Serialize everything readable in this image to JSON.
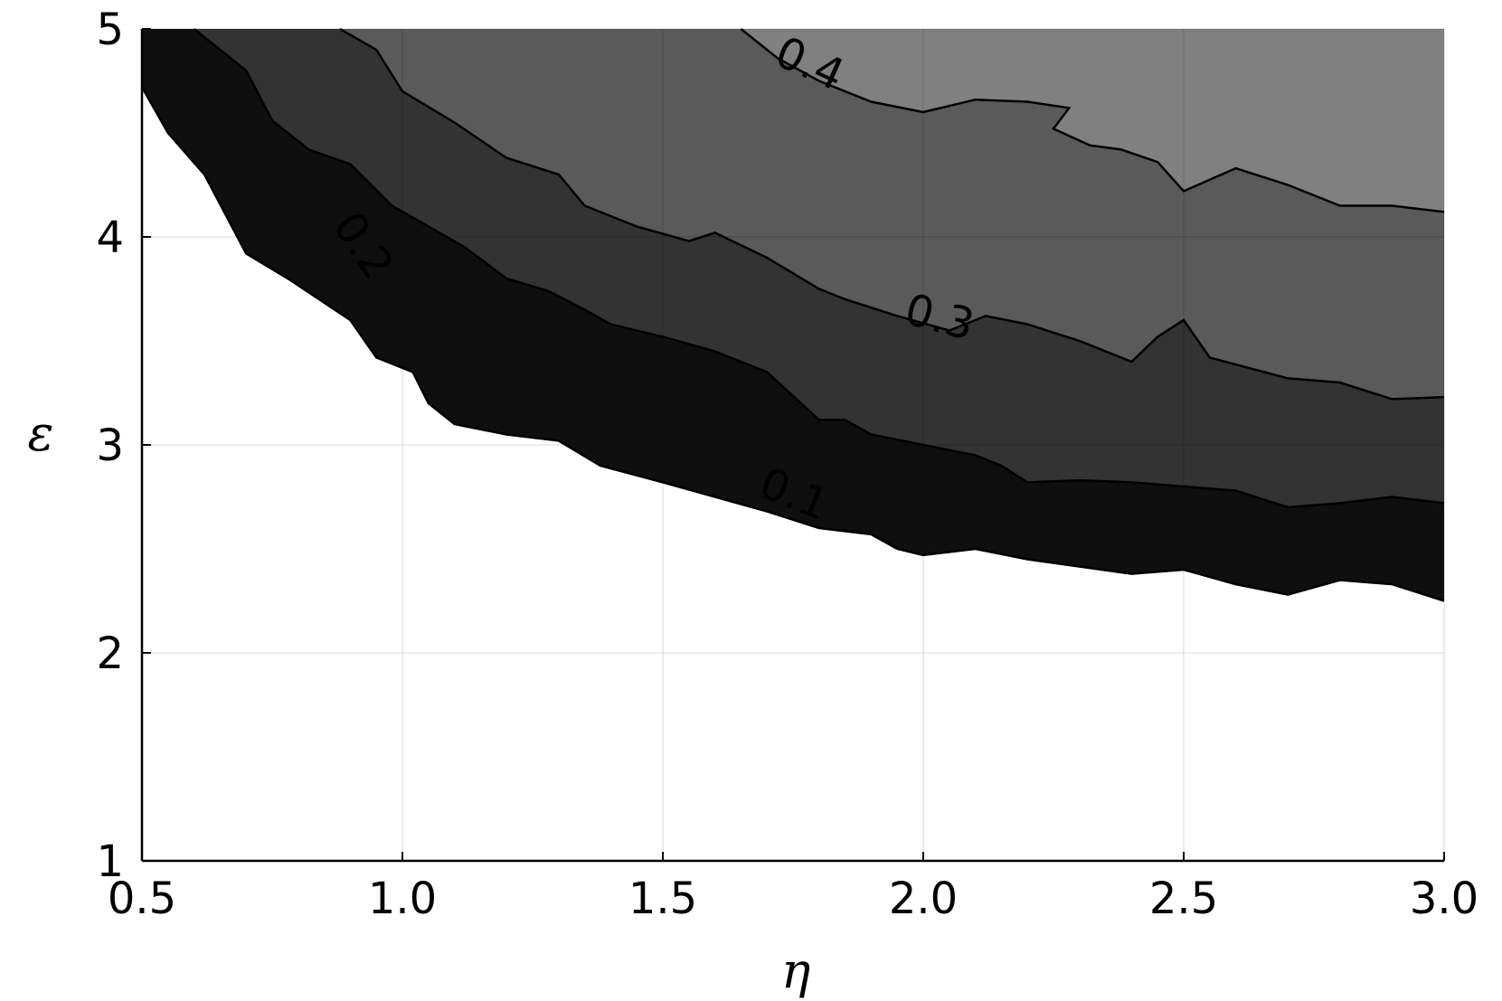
{
  "chart_data": {
    "type": "contour",
    "xlabel": "η",
    "ylabel": "ε",
    "xlim": [
      0.5,
      3.0
    ],
    "ylim": [
      1,
      5
    ],
    "x_ticks": [
      "0.5",
      "1.0",
      "1.5",
      "2.0",
      "2.5",
      "3.0"
    ],
    "y_ticks": [
      "1",
      "2",
      "3",
      "4",
      "5"
    ],
    "x_tick_values": [
      0.5,
      1.0,
      1.5,
      2.0,
      2.5,
      3.0
    ],
    "y_tick_values": [
      1,
      2,
      3,
      4,
      5
    ],
    "grid": true,
    "levels": [
      {
        "label": "0.1",
        "fill": "#0f0f0f",
        "boundary": [
          [
            0.5,
            4.72
          ],
          [
            0.55,
            4.5
          ],
          [
            0.62,
            4.3
          ],
          [
            0.7,
            3.92
          ],
          [
            0.78,
            3.8
          ],
          [
            0.9,
            3.6
          ],
          [
            0.95,
            3.42
          ],
          [
            1.02,
            3.35
          ],
          [
            1.05,
            3.2
          ],
          [
            1.1,
            3.1
          ],
          [
            1.2,
            3.05
          ],
          [
            1.3,
            3.02
          ],
          [
            1.38,
            2.9
          ],
          [
            1.5,
            2.82
          ],
          [
            1.6,
            2.75
          ],
          [
            1.7,
            2.68
          ],
          [
            1.8,
            2.6
          ],
          [
            1.9,
            2.57
          ],
          [
            1.95,
            2.5
          ],
          [
            2.0,
            2.47
          ],
          [
            2.1,
            2.5
          ],
          [
            2.2,
            2.45
          ],
          [
            2.4,
            2.38
          ],
          [
            2.5,
            2.4
          ],
          [
            2.6,
            2.33
          ],
          [
            2.7,
            2.28
          ],
          [
            2.8,
            2.35
          ],
          [
            2.9,
            2.33
          ],
          [
            3.0,
            2.25
          ]
        ]
      },
      {
        "label": "0.2",
        "fill": "#333333",
        "boundary": [
          [
            0.6,
            5.0
          ],
          [
            0.7,
            4.8
          ],
          [
            0.75,
            4.56
          ],
          [
            0.82,
            4.42
          ],
          [
            0.9,
            4.35
          ],
          [
            0.98,
            4.15
          ],
          [
            1.05,
            4.05
          ],
          [
            1.12,
            3.95
          ],
          [
            1.2,
            3.8
          ],
          [
            1.28,
            3.74
          ],
          [
            1.35,
            3.65
          ],
          [
            1.4,
            3.58
          ],
          [
            1.5,
            3.52
          ],
          [
            1.6,
            3.45
          ],
          [
            1.7,
            3.35
          ],
          [
            1.8,
            3.12
          ],
          [
            1.85,
            3.12
          ],
          [
            1.9,
            3.05
          ],
          [
            2.0,
            3.0
          ],
          [
            2.1,
            2.95
          ],
          [
            2.15,
            2.9
          ],
          [
            2.2,
            2.82
          ],
          [
            2.3,
            2.83
          ],
          [
            2.4,
            2.82
          ],
          [
            2.5,
            2.8
          ],
          [
            2.6,
            2.78
          ],
          [
            2.7,
            2.7
          ],
          [
            2.8,
            2.72
          ],
          [
            2.9,
            2.75
          ],
          [
            3.0,
            2.72
          ]
        ]
      },
      {
        "label": "0.3",
        "fill": "#5a5a5a",
        "boundary": [
          [
            0.88,
            5.0
          ],
          [
            0.95,
            4.9
          ],
          [
            1.0,
            4.7
          ],
          [
            1.1,
            4.55
          ],
          [
            1.2,
            4.38
          ],
          [
            1.3,
            4.3
          ],
          [
            1.35,
            4.15
          ],
          [
            1.45,
            4.05
          ],
          [
            1.55,
            3.98
          ],
          [
            1.6,
            4.02
          ],
          [
            1.7,
            3.9
          ],
          [
            1.8,
            3.75
          ],
          [
            1.85,
            3.7
          ],
          [
            1.95,
            3.62
          ],
          [
            2.05,
            3.55
          ],
          [
            2.12,
            3.62
          ],
          [
            2.2,
            3.58
          ],
          [
            2.3,
            3.5
          ],
          [
            2.4,
            3.4
          ],
          [
            2.45,
            3.52
          ],
          [
            2.5,
            3.6
          ],
          [
            2.55,
            3.42
          ],
          [
            2.7,
            3.32
          ],
          [
            2.8,
            3.3
          ],
          [
            2.9,
            3.22
          ],
          [
            3.0,
            3.23
          ]
        ]
      },
      {
        "label": "0.4",
        "fill": "#808080",
        "boundary": [
          [
            1.65,
            5.0
          ],
          [
            1.72,
            4.86
          ],
          [
            1.8,
            4.75
          ],
          [
            1.9,
            4.65
          ],
          [
            2.0,
            4.6
          ],
          [
            2.1,
            4.66
          ],
          [
            2.2,
            4.65
          ],
          [
            2.28,
            4.62
          ],
          [
            2.25,
            4.52
          ],
          [
            2.32,
            4.44
          ],
          [
            2.38,
            4.42
          ],
          [
            2.45,
            4.36
          ],
          [
            2.5,
            4.22
          ],
          [
            2.6,
            4.33
          ],
          [
            2.7,
            4.25
          ],
          [
            2.8,
            4.15
          ],
          [
            2.9,
            4.15
          ],
          [
            3.0,
            4.12
          ]
        ]
      }
    ],
    "contour_labels": [
      {
        "text": "0.1",
        "x": 1.75,
        "y": 2.75,
        "angle": 22
      },
      {
        "text": "0.2",
        "x": 0.92,
        "y": 3.95,
        "angle": 56
      },
      {
        "text": "0.3",
        "x": 2.03,
        "y": 3.6,
        "angle": 15
      },
      {
        "text": "0.4",
        "x": 1.78,
        "y": 4.82,
        "angle": 24
      }
    ],
    "background": "#ffffff"
  }
}
